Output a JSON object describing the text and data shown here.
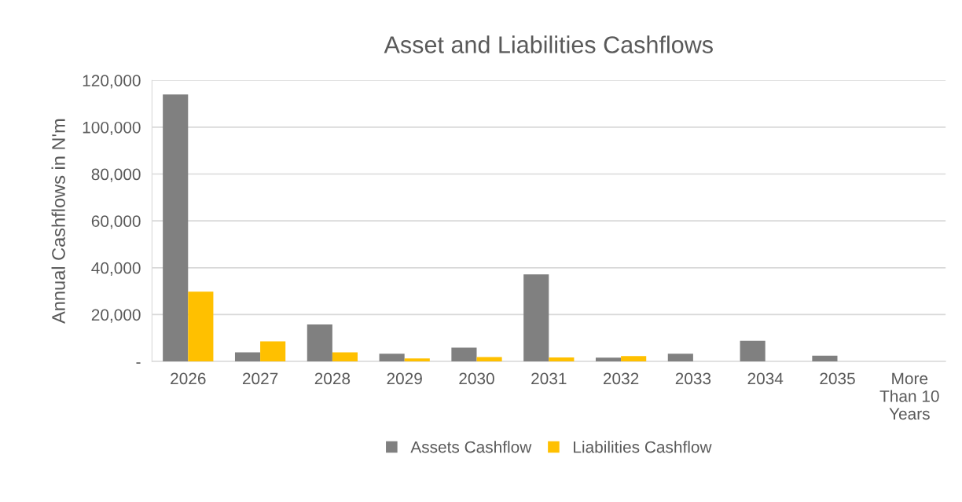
{
  "chart_data": {
    "type": "bar",
    "title": "Asset and Liabilities Cashflows",
    "ylabel": "Annual Cashflows in N'm",
    "categories": [
      "2026",
      "2027",
      "2028",
      "2029",
      "2030",
      "2031",
      "2032",
      "2033",
      "2034",
      "2035",
      "More\nThan 10\nYears"
    ],
    "series": [
      {
        "name": "Assets Cashflow",
        "color": "#808080",
        "values": [
          114000,
          3900,
          15800,
          3300,
          5900,
          37200,
          1600,
          3300,
          8800,
          2500,
          0
        ]
      },
      {
        "name": "Liabilities Cashflow",
        "color": "#ffc000",
        "values": [
          29800,
          8600,
          3900,
          1300,
          1900,
          1700,
          2300,
          0,
          0,
          0,
          0
        ]
      }
    ],
    "ylim": [
      0,
      120000
    ],
    "yticks": [
      {
        "value": 0,
        "label": "-"
      },
      {
        "value": 20000,
        "label": "20,000"
      },
      {
        "value": 40000,
        "label": "40,000"
      },
      {
        "value": 60000,
        "label": "60,000"
      },
      {
        "value": 80000,
        "label": "80,000"
      },
      {
        "value": 100000,
        "label": "100,000"
      },
      {
        "value": 120000,
        "label": "120,000"
      }
    ],
    "grid": "y",
    "legend": "bottom"
  }
}
